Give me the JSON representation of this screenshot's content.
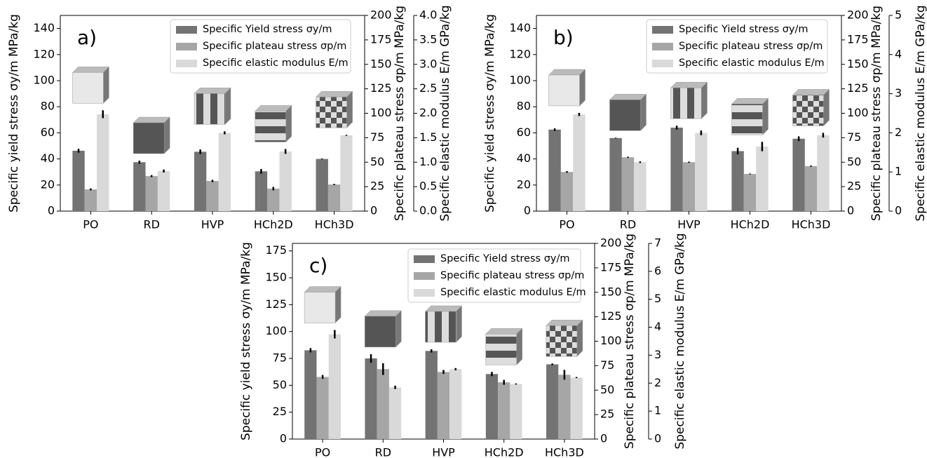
{
  "chart_data": [
    {
      "type": "bar",
      "panel_label": "a)",
      "categories": [
        "PO",
        "RD",
        "HVP",
        "HCh2D",
        "HCh3D"
      ],
      "ylabel": "Specific yield stress σy/m MPa/kg",
      "y2label": "Specific plateau stress σp/m MPa/kg",
      "y3label": "Specific elastic modulus E/m GPa/kg",
      "ylim": [
        0,
        150
      ],
      "yticks": [
        0,
        20,
        40,
        60,
        80,
        100,
        120,
        140
      ],
      "y2lim": [
        0,
        200
      ],
      "y2ticks": [
        0,
        25,
        50,
        75,
        100,
        125,
        150,
        175,
        200
      ],
      "y3lim": [
        0,
        4
      ],
      "y3ticks": [
        {
          "value": 0,
          "label": "0.0"
        },
        0.5,
        {
          "value": 1,
          "label": "1.0"
        },
        1.5,
        {
          "value": 2,
          "label": "2.0"
        },
        2.5,
        {
          "value": 3,
          "label": "3.0"
        },
        3.5,
        {
          "value": 4,
          "label": "4.0"
        }
      ],
      "series": [
        {
          "name": "Specific Yield stress σy/m",
          "color": "#737373",
          "axis": "y",
          "values": [
            46.3,
            37.5,
            45.5,
            30.5,
            40
          ],
          "errors": [
            1.5,
            1.2,
            1.8,
            1.8,
            0.3
          ]
        },
        {
          "name": "Specific plateau stress σp/m",
          "color": "#a6a6a6",
          "axis": "y2",
          "values": [
            22.2,
            35.8,
            30.8,
            23,
            27.2
          ],
          "errors": [
            1,
            1,
            1.2,
            1.8,
            0.6
          ]
        },
        {
          "name": "Specific elastic modulus E/m",
          "color": "#d9d9d9",
          "axis": "y3",
          "values": [
            1.98,
            0.82,
            1.6,
            1.22,
            1.55
          ],
          "errors": [
            0.08,
            0.03,
            0.03,
            0.05,
            0.01
          ]
        }
      ]
    },
    {
      "type": "bar",
      "panel_label": "b)",
      "categories": [
        "PO",
        "RD",
        "HVP",
        "HCh2D",
        "HCh3D"
      ],
      "ylabel": "Specific yield stress σy/m MPa/kg",
      "y2label": "Specific plateau stress σp/m MPa/kg",
      "y3label": "Specific elastic modulus E/m GPa/kg",
      "ylim": [
        0,
        150
      ],
      "yticks": [
        0,
        20,
        40,
        60,
        80,
        100,
        120,
        140
      ],
      "y2lim": [
        0,
        200
      ],
      "y2ticks": [
        0,
        25,
        50,
        75,
        100,
        125,
        150,
        175,
        200
      ],
      "y3lim": [
        0,
        5
      ],
      "y3ticks": [
        0,
        1,
        2,
        3,
        4,
        5
      ],
      "series": [
        {
          "name": "Specific Yield stress σy/m",
          "color": "#737373",
          "axis": "y",
          "values": [
            62.5,
            56,
            64,
            46,
            55.5
          ],
          "errors": [
            1,
            0.3,
            1.5,
            2.5,
            1.8
          ]
        },
        {
          "name": "Specific plateau stress σp/m",
          "color": "#a6a6a6",
          "axis": "y2",
          "values": [
            40,
            55,
            50,
            38,
            46
          ],
          "errors": [
            0.8,
            0.6,
            0.6,
            0.4,
            0.6
          ]
        },
        {
          "name": "Specific elastic modulus E/m",
          "color": "#d9d9d9",
          "axis": "y3",
          "values": [
            2.47,
            1.25,
            2.0,
            1.65,
            1.94
          ],
          "errors": [
            0.04,
            0.02,
            0.06,
            0.12,
            0.06
          ]
        }
      ]
    },
    {
      "type": "bar",
      "panel_label": "c)",
      "categories": [
        "PO",
        "RD",
        "HVP",
        "HCh2D",
        "HCh3D"
      ],
      "ylabel": "Specific yield stress σy/m MPa/kg",
      "y2label": "Specific plateau stress σp/m MPa/kg",
      "y3label": "Specific elastic modulus E/m GPa/kg",
      "ylim": [
        0,
        182
      ],
      "yticks": [
        0,
        25,
        50,
        75,
        100,
        125,
        150,
        175
      ],
      "y2lim": [
        0,
        200
      ],
      "y2ticks": [
        0,
        25,
        50,
        75,
        100,
        125,
        150,
        175,
        200
      ],
      "y3lim": [
        0,
        7
      ],
      "y3ticks": [
        0,
        1,
        2,
        3,
        4,
        5,
        6,
        7
      ],
      "series": [
        {
          "name": "Specific Yield stress σy/m",
          "color": "#737373",
          "axis": "y",
          "values": [
            82.6,
            75,
            82,
            60.5,
            69.5
          ],
          "errors": [
            2,
            4,
            1.5,
            2,
            0.8
          ]
        },
        {
          "name": "Specific plateau stress σp/m",
          "color": "#a6a6a6",
          "axis": "y2",
          "values": [
            63.5,
            71.5,
            68.6,
            58,
            65.7
          ],
          "errors": [
            2,
            6,
            2,
            2.5,
            5
          ]
        },
        {
          "name": "Specific elastic modulus E/m",
          "color": "#d9d9d9",
          "axis": "y3",
          "values": [
            3.75,
            1.85,
            2.5,
            1.97,
            2.2
          ],
          "errors": [
            0.15,
            0.06,
            0.04,
            0.02,
            0.02
          ]
        }
      ]
    }
  ]
}
